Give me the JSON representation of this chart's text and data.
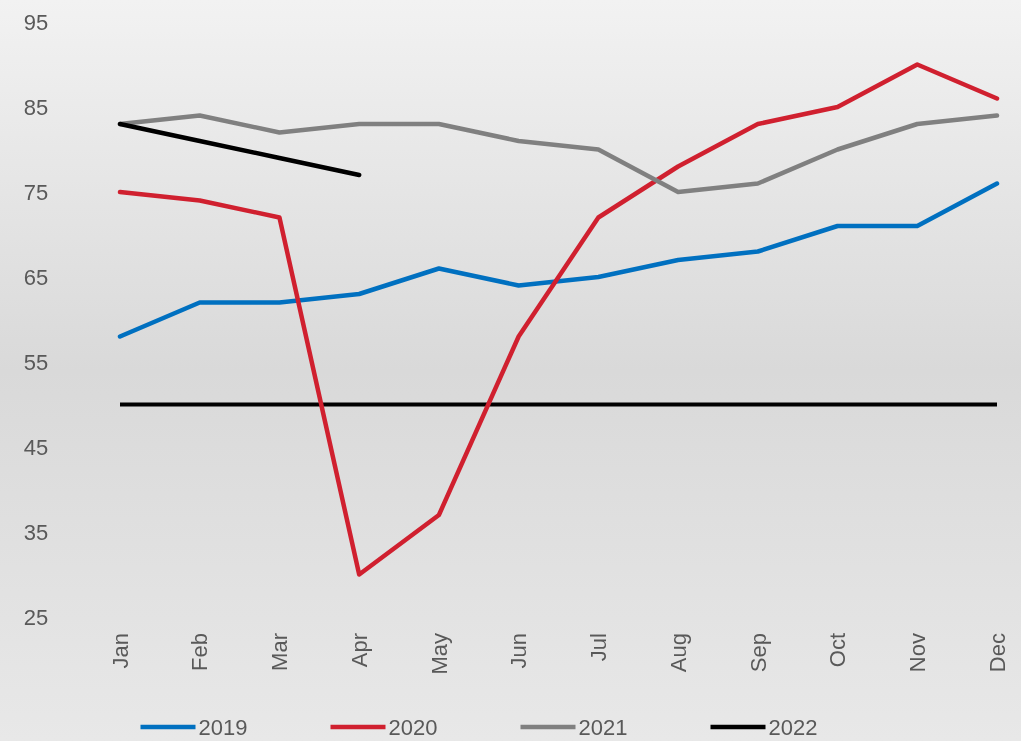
{
  "chart_data": {
    "type": "line",
    "categories": [
      "Jan",
      "Feb",
      "Mar",
      "Apr",
      "May",
      "Jun",
      "Jul",
      "Aug",
      "Sep",
      "Oct",
      "Nov",
      "Dec"
    ],
    "series": [
      {
        "name": "2019",
        "color": "#0070c0",
        "values": [
          58,
          62,
          62,
          63,
          66,
          64,
          65,
          67,
          68,
          71,
          71,
          76
        ]
      },
      {
        "name": "2020",
        "color": "#d0202f",
        "values": [
          75,
          74,
          72,
          30,
          37,
          58,
          72,
          78,
          83,
          85,
          90,
          86
        ]
      },
      {
        "name": "2021",
        "color": "#808080",
        "values": [
          83,
          84,
          82,
          83,
          83,
          81,
          80,
          75,
          76,
          80,
          83,
          84
        ]
      },
      {
        "name": "2022",
        "color": "#000000",
        "values": [
          83,
          81,
          79,
          77,
          null,
          null,
          null,
          null,
          null,
          null,
          null,
          null
        ]
      }
    ],
    "ylim": [
      25,
      95
    ],
    "yticks": [
      25,
      35,
      45,
      55,
      65,
      75,
      85,
      95
    ],
    "ref_lines": [
      {
        "axis": "y",
        "value": 50,
        "color": "#000000",
        "line_style": "solid"
      }
    ],
    "grid": false,
    "legend": "bottom",
    "marker": "none",
    "line_style": "solid"
  }
}
